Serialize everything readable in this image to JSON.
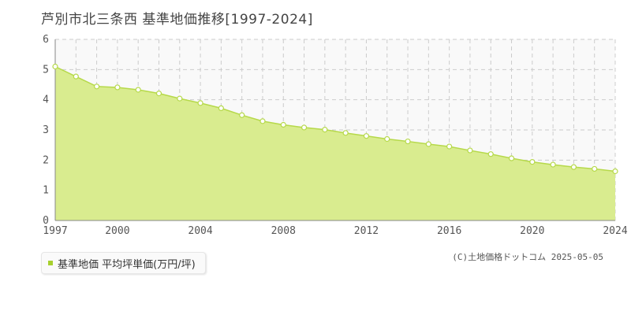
{
  "title": "芦別市北三条西 基準地価推移[1997-2024]",
  "legend": {
    "label": "基準地価 平均坪単価(万円/坪)",
    "color": "#a7d02e"
  },
  "credit": "(C)土地価格ドットコム 2025-05-05",
  "colors": {
    "area_fill": "#d9ec8f",
    "line": "#b6d94a",
    "grid": "#cccccc",
    "plot_bg": "#f9f9f9"
  },
  "chart_data": {
    "type": "area",
    "x_start": 1997,
    "x_end": 2024,
    "x_tick_labels": [
      "1997",
      "2000",
      "2004",
      "2008",
      "2012",
      "2016",
      "2020",
      "2024"
    ],
    "y_tick_labels": [
      "0",
      "1",
      "2",
      "3",
      "4",
      "5",
      "6"
    ],
    "ylim": [
      0,
      6
    ],
    "grid": true,
    "series": [
      {
        "name": "基準地価 平均坪単価(万円/坪)",
        "x": [
          1997,
          1998,
          1999,
          2000,
          2001,
          2002,
          2003,
          2004,
          2005,
          2006,
          2007,
          2008,
          2009,
          2010,
          2011,
          2012,
          2013,
          2014,
          2015,
          2016,
          2017,
          2018,
          2019,
          2020,
          2021,
          2022,
          2023,
          2024
        ],
        "values": [
          5.1,
          4.77,
          4.44,
          4.41,
          4.33,
          4.21,
          4.04,
          3.89,
          3.72,
          3.49,
          3.29,
          3.17,
          3.08,
          3.01,
          2.9,
          2.8,
          2.7,
          2.62,
          2.53,
          2.45,
          2.32,
          2.2,
          2.06,
          1.94,
          1.85,
          1.77,
          1.71,
          1.63
        ]
      }
    ]
  }
}
